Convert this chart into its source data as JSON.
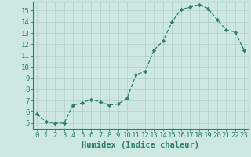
{
  "x": [
    0,
    1,
    2,
    3,
    4,
    5,
    6,
    7,
    8,
    9,
    10,
    11,
    12,
    13,
    14,
    15,
    16,
    17,
    18,
    19,
    20,
    21,
    22,
    23
  ],
  "y": [
    5.8,
    5.1,
    5.0,
    5.0,
    6.6,
    6.8,
    7.1,
    6.9,
    6.6,
    6.7,
    7.2,
    9.3,
    9.6,
    11.5,
    12.3,
    14.0,
    15.1,
    15.3,
    15.5,
    15.2,
    14.2,
    13.3,
    13.1,
    11.5
  ],
  "line_color": "#2e7d6e",
  "marker": "D",
  "marker_size": 2.2,
  "bg_color": "#cce8e0",
  "grid_color": "#b0cfc8",
  "xlabel": "Humidex (Indice chaleur)",
  "xlim": [
    -0.5,
    23.5
  ],
  "ylim": [
    4.5,
    15.8
  ],
  "yticks": [
    5,
    6,
    7,
    8,
    9,
    10,
    11,
    12,
    13,
    14,
    15
  ],
  "xticks": [
    0,
    1,
    2,
    3,
    4,
    5,
    6,
    7,
    8,
    9,
    10,
    11,
    12,
    13,
    14,
    15,
    16,
    17,
    18,
    19,
    20,
    21,
    22,
    23
  ],
  "tick_fontsize": 6.5,
  "xlabel_fontsize": 7.5,
  "axis_color": "#2e7d6e",
  "spine_color": "#2e7d6e"
}
